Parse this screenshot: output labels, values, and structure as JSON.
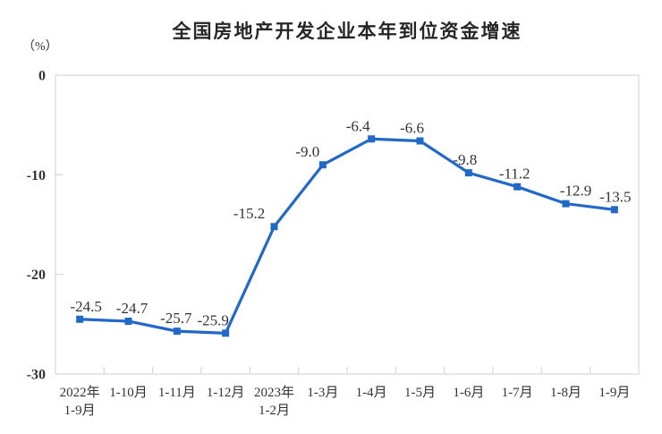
{
  "chart_data": {
    "type": "line",
    "title": "全国房地产开发企业本年到位资金增速",
    "unit_label": "（%）",
    "categories": [
      [
        "2022年",
        "1-9月"
      ],
      [
        "1-10月"
      ],
      [
        "1-11月"
      ],
      [
        "1-12月"
      ],
      [
        "2023年",
        "1-2月"
      ],
      [
        "1-3月"
      ],
      [
        "1-4月"
      ],
      [
        "1-5月"
      ],
      [
        "1-6月"
      ],
      [
        "1-7月"
      ],
      [
        "1-8月"
      ],
      [
        "1-9月"
      ]
    ],
    "values": [
      -24.5,
      -24.7,
      -25.7,
      -25.9,
      -15.2,
      -9.0,
      -6.4,
      -6.6,
      -9.8,
      -11.2,
      -12.9,
      -13.5
    ],
    "data_labels": [
      "-24.5",
      "-24.7",
      "-25.7",
      "-25.9",
      "-15.2",
      "-9.0",
      "-6.4",
      "-6.6",
      "-9.8",
      "-11.2",
      "-12.9",
      "-13.5"
    ],
    "y_ticks": [
      0,
      -10,
      -20,
      -30
    ],
    "y_tick_labels": [
      "0",
      "-10",
      "-20",
      "-30"
    ],
    "ylim": [
      -30,
      0
    ],
    "grid": false,
    "legend_position": "none",
    "marker": "square",
    "colors": {
      "line": "#2268C8",
      "axis": "#CFCFCF",
      "text": "#333333",
      "title": "#262626"
    }
  }
}
